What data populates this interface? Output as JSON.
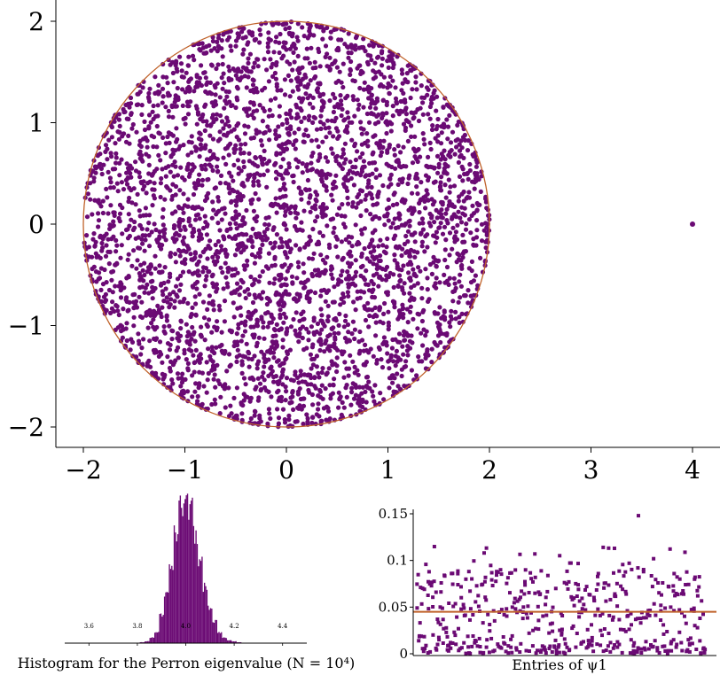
{
  "chart_data": [
    {
      "type": "scatter",
      "description_text": "",
      "xlim": [
        -2.25,
        4.3
      ],
      "ylim": [
        -2.2,
        2.2
      ],
      "x_ticks": [
        {
          "v": -2,
          "label": "−2"
        },
        {
          "v": -1,
          "label": "−1"
        },
        {
          "v": 0,
          "label": "0"
        },
        {
          "v": 1,
          "label": "1"
        },
        {
          "v": 2,
          "label": "2"
        },
        {
          "v": 3,
          "label": "3"
        },
        {
          "v": 4,
          "label": "4"
        }
      ],
      "y_ticks": [
        {
          "v": 2,
          "label": "2"
        },
        {
          "v": 1,
          "label": "1"
        },
        {
          "v": 0,
          "label": "0"
        },
        {
          "v": -1,
          "label": "−1"
        },
        {
          "v": -2,
          "label": "−2"
        }
      ],
      "bulk": {
        "shape": "disk",
        "center": [
          0,
          0
        ],
        "radius": 2,
        "point_count": 3600
      },
      "circle": {
        "center": [
          0,
          0
        ],
        "radius": 2
      },
      "outlier": {
        "x": 4,
        "y": 0
      },
      "point_color": "#6b0a74",
      "circle_color": "#c0622a",
      "grid": false
    },
    {
      "type": "bar",
      "caption": "Histogram for the Perron eigenvalue (N = 10⁴)",
      "xlim": [
        3.5,
        4.5
      ],
      "x_ticks": [
        {
          "v": 3.6,
          "label": "3.6"
        },
        {
          "v": 3.8,
          "label": "3.8"
        },
        {
          "v": 4.0,
          "label": "4.0"
        },
        {
          "v": 4.2,
          "label": "4.2"
        },
        {
          "v": 4.4,
          "label": "4.4"
        }
      ],
      "bin_centers": [
        3.82,
        3.84,
        3.86,
        3.88,
        3.9,
        3.92,
        3.94,
        3.96,
        3.98,
        4.0,
        4.02,
        4.04,
        4.06,
        4.08,
        4.1,
        4.12,
        4.14,
        4.16,
        4.18,
        4.2,
        4.22
      ],
      "counts": [
        1,
        2,
        6,
        12,
        30,
        55,
        85,
        120,
        150,
        162,
        148,
        120,
        90,
        62,
        40,
        24,
        12,
        6,
        3,
        2,
        1
      ],
      "bar_color": "#6b0a74",
      "grid": false
    },
    {
      "type": "scatter",
      "caption": "Entries of ψ1",
      "ylim": [
        0,
        0.16
      ],
      "y_ticks": [
        {
          "v": 0,
          "label": "0"
        },
        {
          "v": 0.05,
          "label": "0.05"
        },
        {
          "v": 0.1,
          "label": "0.1"
        },
        {
          "v": 0.15,
          "label": "0.15"
        }
      ],
      "point_count": 500,
      "reference_line": {
        "y": 0.045,
        "color": "#c0622a"
      },
      "point_color": "#6b0a74",
      "grid": false
    }
  ]
}
